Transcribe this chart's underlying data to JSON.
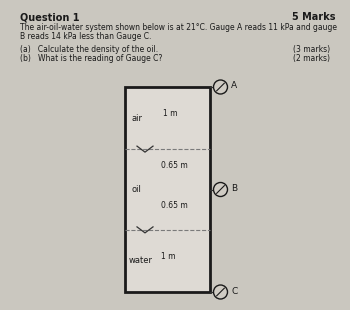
{
  "bg_color": "#cac7bf",
  "title": "Question 1",
  "marks": "5 Marks",
  "line1": "The air-oil-water system shown below is at 21°C. Gauge A reads 11 kPa and gauge",
  "line2": "B reads 14 kPa less than Gauge C.",
  "qa": "(a)   Calculate the density of the oil.",
  "qb": "(b)   What is the reading of Gauge C?",
  "marks_a": "(3 marks)",
  "marks_b": "(2 marks)",
  "label_air": "air",
  "label_oil": "oil",
  "label_water": "water",
  "label_1m_top": "1 m",
  "label_065_top": "0.65 m",
  "label_065_bot": "0.65 m",
  "label_1m_bot": "1 m",
  "gauge_A": "A",
  "gauge_B": "B",
  "gauge_C": "C",
  "box_facecolor": "#dedad4",
  "box_edgecolor": "#1a1a1a",
  "dash_color": "#7a7a7a",
  "text_color": "#1a1a1a"
}
